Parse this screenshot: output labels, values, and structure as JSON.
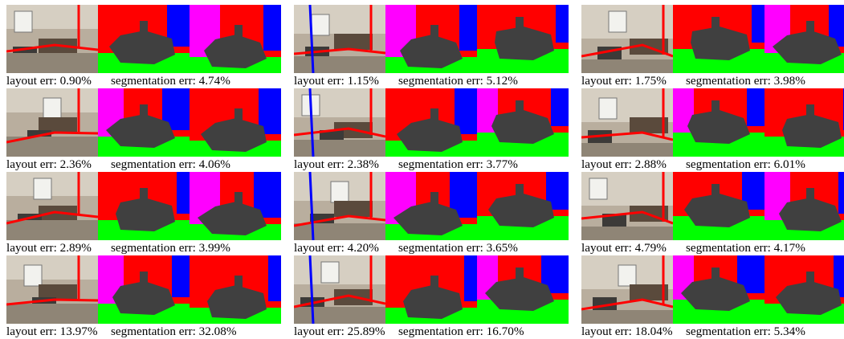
{
  "figure": {
    "rows": [
      [
        {
          "layout_label": "layout err:",
          "layout_err": "0.90%",
          "seg_label": "segmentation err:",
          "seg_err": "4.74%"
        },
        {
          "layout_label": "layout err:",
          "layout_err": "1.15%",
          "seg_label": "segmentation err:",
          "seg_err": "5.12%"
        },
        {
          "layout_label": "layout err:",
          "layout_err": "1.75%",
          "seg_label": "segmentation err:",
          "seg_err": "3.98%"
        }
      ],
      [
        {
          "layout_label": "layout err:",
          "layout_err": "2.36%",
          "seg_label": "segmentation err:",
          "seg_err": "4.06%"
        },
        {
          "layout_label": "layout err:",
          "layout_err": "2.38%",
          "seg_label": "segmentation err:",
          "seg_err": "3.77%"
        },
        {
          "layout_label": "layout err:",
          "layout_err": "2.88%",
          "seg_label": "segmentation err:",
          "seg_err": "6.01%"
        }
      ],
      [
        {
          "layout_label": "layout err:",
          "layout_err": "2.89%",
          "seg_label": "segmentation err:",
          "seg_err": "3.99%"
        },
        {
          "layout_label": "layout err:",
          "layout_err": "4.20%",
          "seg_label": "segmentation err:",
          "seg_err": "3.65%"
        },
        {
          "layout_label": "layout err:",
          "layout_err": "4.79%",
          "seg_label": "segmentation err:",
          "seg_err": "4.17%"
        }
      ],
      [
        {
          "layout_label": "layout err:",
          "layout_err": "13.97%",
          "seg_label": "segmentation err:",
          "seg_err": "32.08%"
        },
        {
          "layout_label": "layout err:",
          "layout_err": "25.89%",
          "seg_label": "segmentation err:",
          "seg_err": "16.70%"
        },
        {
          "layout_label": "layout err:",
          "layout_err": "18.04%",
          "seg_label": "segmentation err:",
          "seg_err": "5.34%"
        }
      ]
    ],
    "colors": {
      "ceiling": "#ff00ff",
      "wall_red": "#ff0000",
      "wall_blue": "#0000ff",
      "floor": "#00ff00",
      "clutter": "#404040",
      "ceiling_yellow": "#ffff00",
      "photo_tone": "#8a7f70"
    }
  }
}
